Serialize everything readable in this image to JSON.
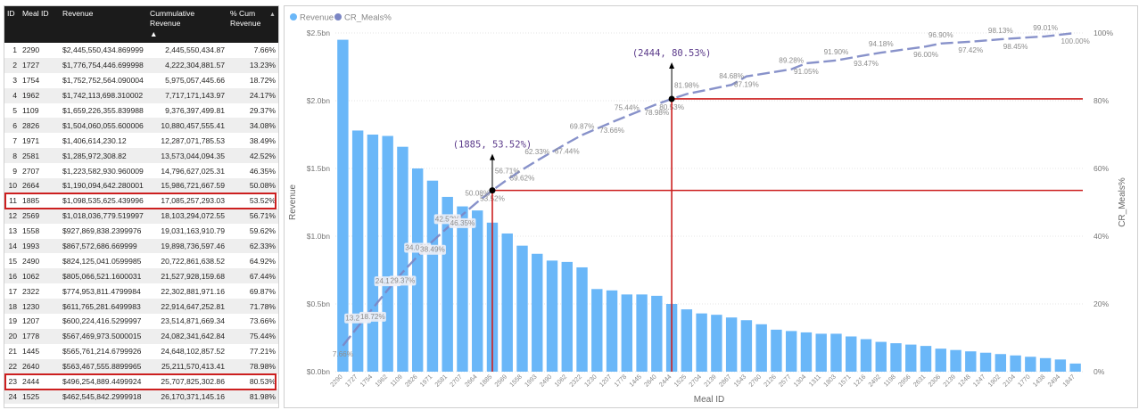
{
  "table": {
    "headers": {
      "id": "ID",
      "meal_id": "Meal ID",
      "revenue": "Revenue",
      "cum_revenue_1": "Cummulative",
      "cum_revenue_2": "Revenue",
      "cum_pct_1": "% Cum",
      "cum_pct_2": "Revenue"
    },
    "rows": [
      {
        "id": "1",
        "meal": "2290",
        "rev": "$2,445,550,434.869999",
        "cum": "2,445,550,434.87",
        "pct": "7.66%"
      },
      {
        "id": "2",
        "meal": "1727",
        "rev": "$1,776,754,446.699998",
        "cum": "4,222,304,881.57",
        "pct": "13.23%"
      },
      {
        "id": "3",
        "meal": "1754",
        "rev": "$1,752,752,564.090004",
        "cum": "5,975,057,445.66",
        "pct": "18.72%"
      },
      {
        "id": "4",
        "meal": "1962",
        "rev": "$1,742,113,698.310002",
        "cum": "7,717,171,143.97",
        "pct": "24.17%"
      },
      {
        "id": "5",
        "meal": "1109",
        "rev": "$1,659,226,355.839988",
        "cum": "9,376,397,499.81",
        "pct": "29.37%"
      },
      {
        "id": "6",
        "meal": "2826",
        "rev": "$1,504,060,055.600006",
        "cum": "10,880,457,555.41",
        "pct": "34.08%"
      },
      {
        "id": "7",
        "meal": "1971",
        "rev": "$1,406,614,230.12",
        "cum": "12,287,071,785.53",
        "pct": "38.49%"
      },
      {
        "id": "8",
        "meal": "2581",
        "rev": "$1,285,972,308.82",
        "cum": "13,573,044,094.35",
        "pct": "42.52%"
      },
      {
        "id": "9",
        "meal": "2707",
        "rev": "$1,223,582,930.960009",
        "cum": "14,796,627,025.31",
        "pct": "46.35%"
      },
      {
        "id": "10",
        "meal": "2664",
        "rev": "$1,190,094,642.280001",
        "cum": "15,986,721,667.59",
        "pct": "50.08%"
      },
      {
        "id": "11",
        "meal": "1885",
        "rev": "$1,098,535,625.439996",
        "cum": "17,085,257,293.03",
        "pct": "53.52%"
      },
      {
        "id": "12",
        "meal": "2569",
        "rev": "$1,018,036,779.519997",
        "cum": "18,103,294,072.55",
        "pct": "56.71%"
      },
      {
        "id": "13",
        "meal": "1558",
        "rev": "$927,869,838.2399976",
        "cum": "19,031,163,910.79",
        "pct": "59.62%"
      },
      {
        "id": "14",
        "meal": "1993",
        "rev": "$867,572,686.669999",
        "cum": "19,898,736,597.46",
        "pct": "62.33%"
      },
      {
        "id": "15",
        "meal": "2490",
        "rev": "$824,125,041.0599985",
        "cum": "20,722,861,638.52",
        "pct": "64.92%"
      },
      {
        "id": "16",
        "meal": "1062",
        "rev": "$805,066,521.1600031",
        "cum": "21,527,928,159.68",
        "pct": "67.44%"
      },
      {
        "id": "17",
        "meal": "2322",
        "rev": "$774,953,811.4799984",
        "cum": "22,302,881,971.16",
        "pct": "69.87%"
      },
      {
        "id": "18",
        "meal": "1230",
        "rev": "$611,765,281.6499983",
        "cum": "22,914,647,252.81",
        "pct": "71.78%"
      },
      {
        "id": "19",
        "meal": "1207",
        "rev": "$600,224,416.5299997",
        "cum": "23,514,871,669.34",
        "pct": "73.66%"
      },
      {
        "id": "20",
        "meal": "1778",
        "rev": "$567,469,973.5000015",
        "cum": "24,082,341,642.84",
        "pct": "75.44%"
      },
      {
        "id": "21",
        "meal": "1445",
        "rev": "$565,761,214.6799926",
        "cum": "24,648,102,857.52",
        "pct": "77.21%"
      },
      {
        "id": "22",
        "meal": "2640",
        "rev": "$563,467,555.8899965",
        "cum": "25,211,570,413.41",
        "pct": "78.98%"
      },
      {
        "id": "23",
        "meal": "2444",
        "rev": "$496,254,889.4499924",
        "cum": "25,707,825,302.86",
        "pct": "80.53%"
      },
      {
        "id": "24",
        "meal": "1525",
        "rev": "$462,545,842.2999918",
        "cum": "26,170,371,145.16",
        "pct": "81.98%"
      }
    ],
    "highlighted_ids": [
      "11",
      "23"
    ]
  },
  "chart_data": {
    "type": "bar",
    "legend": [
      "Revenue",
      "CR_Meals%"
    ],
    "legend_position": "top-left",
    "xlabel": "Meal ID",
    "ylabel": "Revenue",
    "y2label": "CR_Meals%",
    "ylim": [
      0,
      2.5
    ],
    "y_ticks": [
      "$0.0bn",
      "$0.5bn",
      "$1.0bn",
      "$1.5bn",
      "$2.0bn",
      "$2.5bn"
    ],
    "y2lim": [
      0,
      100
    ],
    "y2_ticks": [
      "0%",
      "20%",
      "40%",
      "60%",
      "80%",
      "100%"
    ],
    "grid": true,
    "categories": [
      "2290",
      "1727",
      "1754",
      "1962",
      "1109",
      "2826",
      "1971",
      "2581",
      "2707",
      "2664",
      "1885",
      "2569",
      "1558",
      "1993",
      "2490",
      "1062",
      "2322",
      "1230",
      "1207",
      "1778",
      "1445",
      "2640",
      "2444",
      "1525",
      "2704",
      "2139",
      "2867",
      "1543",
      "2760",
      "2126",
      "2577",
      "1304",
      "1311",
      "1803",
      "1571",
      "1216",
      "2492",
      "1198",
      "2956",
      "2631",
      "2306",
      "2139",
      "1248",
      "1247",
      "1902",
      "2104",
      "1770",
      "1438",
      "2494",
      "1847"
    ],
    "bar_values": [
      2.45,
      1.78,
      1.75,
      1.74,
      1.66,
      1.5,
      1.41,
      1.29,
      1.22,
      1.19,
      1.1,
      1.02,
      0.93,
      0.87,
      0.82,
      0.81,
      0.77,
      0.61,
      0.6,
      0.57,
      0.57,
      0.56,
      0.5,
      0.46,
      0.43,
      0.42,
      0.4,
      0.38,
      0.35,
      0.31,
      0.3,
      0.29,
      0.28,
      0.28,
      0.26,
      0.24,
      0.22,
      0.21,
      0.2,
      0.19,
      0.17,
      0.16,
      0.15,
      0.14,
      0.13,
      0.12,
      0.11,
      0.1,
      0.09,
      0.06
    ],
    "line_points": [
      {
        "i": 0,
        "v": 7.66,
        "label": "7.66%"
      },
      {
        "i": 1,
        "v": 13.23,
        "label": "13.23%"
      },
      {
        "i": 2,
        "v": 18.72,
        "label": "18.72%"
      },
      {
        "i": 3,
        "v": 24.17,
        "label": "24.17%"
      },
      {
        "i": 4,
        "v": 29.37,
        "label": "29.37%"
      },
      {
        "i": 5,
        "v": 34.08,
        "label": "34.08%"
      },
      {
        "i": 6,
        "v": 38.49,
        "label": "38.49%"
      },
      {
        "i": 7,
        "v": 42.52,
        "label": "42.52%"
      },
      {
        "i": 8,
        "v": 46.35,
        "label": "46.35%"
      },
      {
        "i": 9,
        "v": 50.08,
        "label": "50.08%"
      },
      {
        "i": 10,
        "v": 53.52,
        "label": "53.52%"
      },
      {
        "i": 11,
        "v": 56.71,
        "label": "56.71%"
      },
      {
        "i": 12,
        "v": 59.62,
        "label": "59.62%"
      },
      {
        "i": 13,
        "v": 62.33,
        "label": "62.33%"
      },
      {
        "i": 15,
        "v": 67.44,
        "label": "67.44%"
      },
      {
        "i": 16,
        "v": 69.87,
        "label": "69.87%"
      },
      {
        "i": 18,
        "v": 73.66,
        "label": "73.66%"
      },
      {
        "i": 19,
        "v": 75.44,
        "label": "75.44%"
      },
      {
        "i": 22,
        "v": 80.53,
        "label": "80.53%"
      },
      {
        "i": 23,
        "v": 81.98,
        "label": "81.98%"
      },
      {
        "i": 21,
        "v": 78.98,
        "label": "78.98%"
      },
      {
        "i": 26,
        "v": 84.68,
        "label": "84.68%"
      },
      {
        "i": 27,
        "v": 87.19,
        "label": "87.19%"
      },
      {
        "i": 30,
        "v": 89.28,
        "label": "89.28%"
      },
      {
        "i": 31,
        "v": 91.05,
        "label": "91.05%"
      },
      {
        "i": 33,
        "v": 91.9,
        "label": "91.90%"
      },
      {
        "i": 35,
        "v": 93.47,
        "label": "93.47%"
      },
      {
        "i": 36,
        "v": 94.18,
        "label": "94.18%"
      },
      {
        "i": 39,
        "v": 96.0,
        "label": "96.00%"
      },
      {
        "i": 40,
        "v": 96.9,
        "label": "96.90%"
      },
      {
        "i": 42,
        "v": 97.42,
        "label": "97.42%"
      },
      {
        "i": 44,
        "v": 98.13,
        "label": "98.13%"
      },
      {
        "i": 45,
        "v": 98.45,
        "label": "98.45%"
      },
      {
        "i": 47,
        "v": 99.01,
        "label": "99.01%"
      },
      {
        "i": 49,
        "v": 100.0,
        "label": "100.00%"
      }
    ],
    "annotations": [
      {
        "label": "(1885, 53.52%)",
        "index": 10,
        "pct": 53.52
      },
      {
        "label": "(2444, 80.53%)",
        "index": 22,
        "pct": 80.53
      }
    ],
    "colors": {
      "bar": "#6ab7f8",
      "line": "#7b86c4",
      "reference": "#cc1f1f",
      "annotation": "#5b3a8a"
    }
  }
}
